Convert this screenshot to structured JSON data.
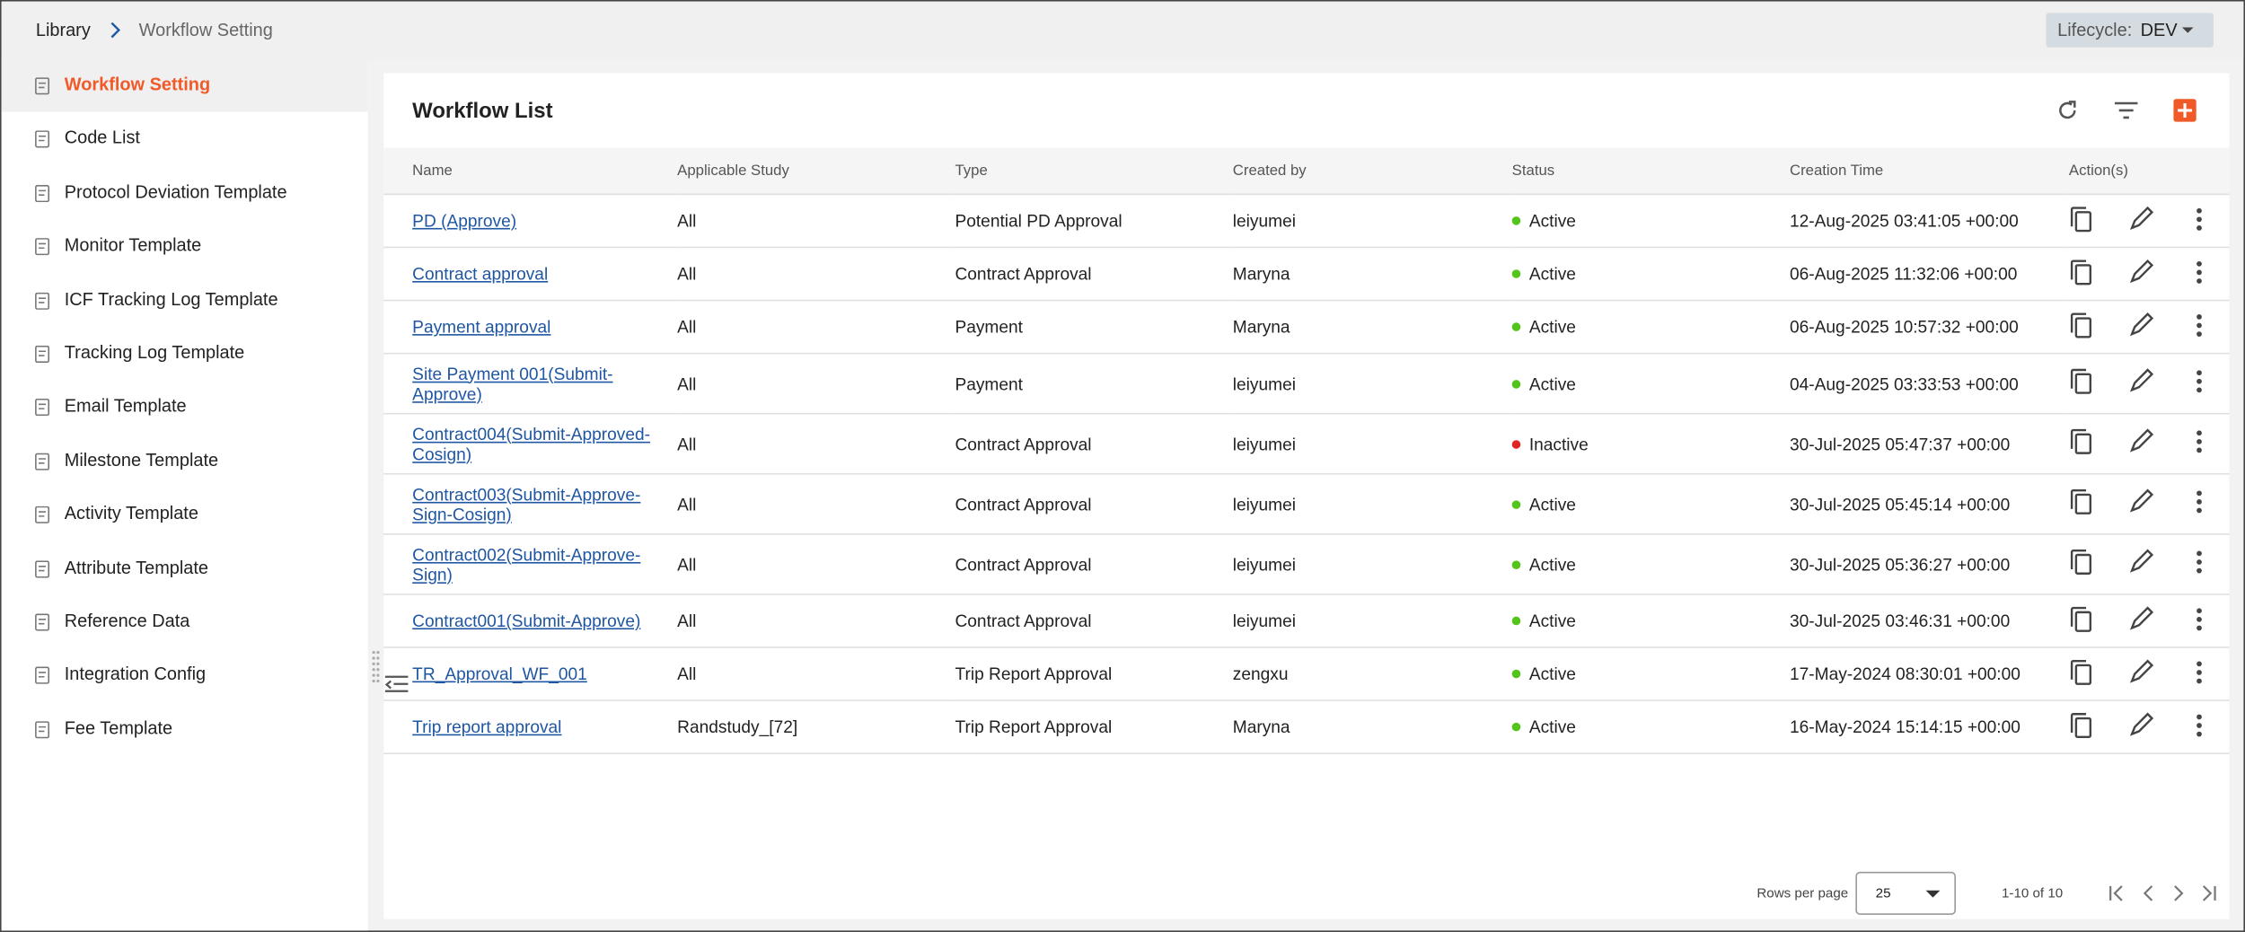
{
  "breadcrumb": [
    "Library",
    "Workflow Setting"
  ],
  "lifecycle": {
    "label": "Lifecycle:",
    "value": "DEV"
  },
  "sidebar": [
    "Workflow Setting",
    "Code List",
    "Protocol Deviation Template",
    "Monitor Template",
    "ICF Tracking Log Template",
    "Tracking Log Template",
    "Email Template",
    "Milestone Template",
    "Activity Template",
    "Attribute Template",
    "Reference Data",
    "Integration Config",
    "Fee Template"
  ],
  "table": {
    "title": "Workflow List",
    "columns": [
      "Name",
      "Applicable Study",
      "Type",
      "Created by",
      "Status",
      "Creation Time",
      "Action(s)"
    ],
    "rows": [
      [
        "PD (Approve)",
        "All",
        "Potential PD Approval",
        "leiyumei",
        "Active",
        "12-Aug-2025 03:41:05 +00:00"
      ],
      [
        "Contract approval",
        "All",
        "Contract Approval",
        "Maryna",
        "Active",
        "06-Aug-2025 11:32:06 +00:00"
      ],
      [
        "Payment approval",
        "All",
        "Payment",
        "Maryna",
        "Active",
        "06-Aug-2025 10:57:32 +00:00"
      ],
      [
        "Site Payment 001(Submit-Approve)",
        "All",
        "Payment",
        "leiyumei",
        "Active",
        "04-Aug-2025 03:33:53 +00:00"
      ],
      [
        "Contract004(Submit-Approved-Cosign)",
        "All",
        "Contract Approval",
        "leiyumei",
        "Inactive",
        "30-Jul-2025 05:47:37 +00:00"
      ],
      [
        "Contract003(Submit-Approve-Sign-Cosign)",
        "All",
        "Contract Approval",
        "leiyumei",
        "Active",
        "30-Jul-2025 05:45:14 +00:00"
      ],
      [
        "Contract002(Submit-Approve-Sign)",
        "All",
        "Contract Approval",
        "leiyumei",
        "Active",
        "30-Jul-2025 05:36:27 +00:00"
      ],
      [
        "Contract001(Submit-Approve)",
        "All",
        "Contract Approval",
        "leiyumei",
        "Active",
        "30-Jul-2025 03:46:31 +00:00"
      ],
      [
        "TR_Approval_WF_001",
        "All",
        "Trip Report Approval",
        "zengxu",
        "Active",
        "17-May-2024 08:30:01 +00:00"
      ],
      [
        "Trip report approval",
        "Randstudy_[72]",
        "Trip Report Approval",
        "Maryna",
        "Active",
        "16-May-2024 15:14:15 +00:00"
      ]
    ]
  },
  "footer": {
    "rows_label": "Rows per page",
    "rows_value": "25",
    "range": "1-10 of 10"
  }
}
